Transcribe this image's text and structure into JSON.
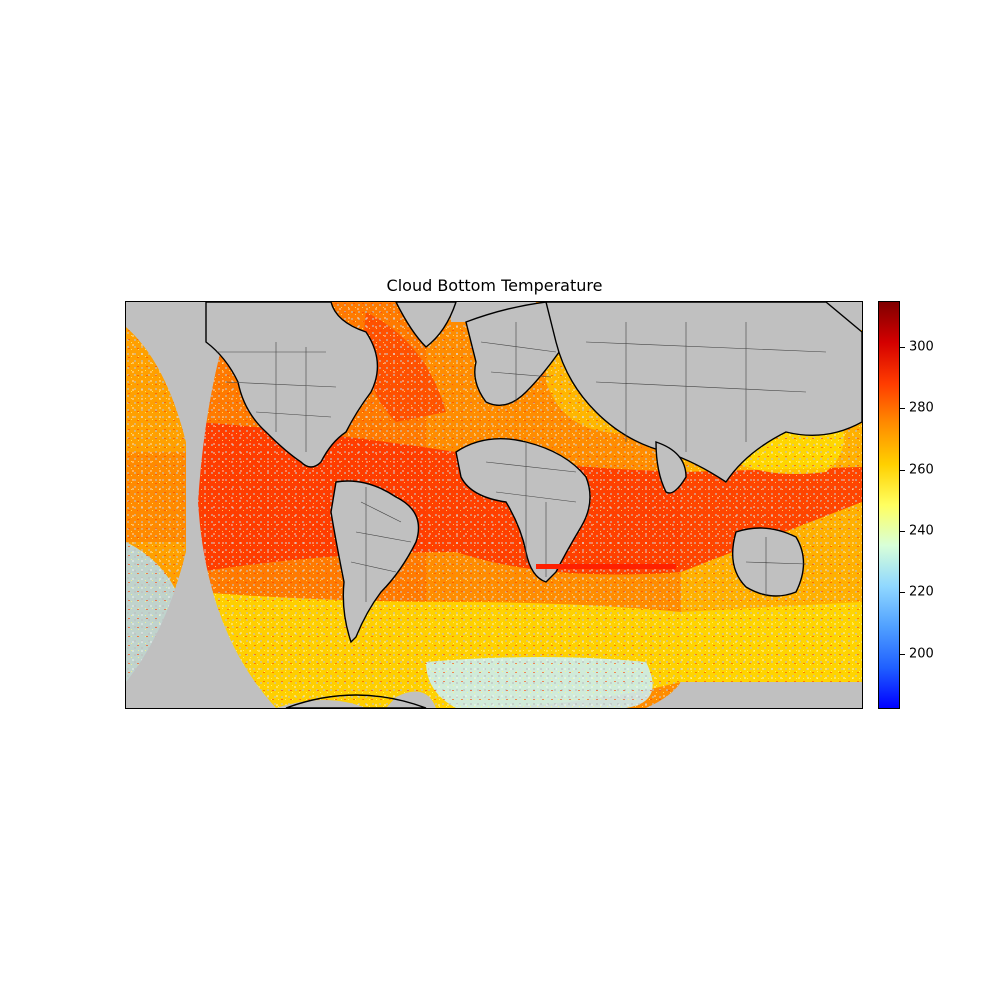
{
  "title": "Cloud Bottom Temperature",
  "colorbar": {
    "min": 182,
    "max": 315,
    "ticks": [
      200,
      220,
      240,
      260,
      280,
      300
    ],
    "tick_labels": [
      "200",
      "220",
      "240",
      "260",
      "280",
      "300"
    ],
    "colormap": [
      "#0000ff",
      "#2060ff",
      "#50a0ff",
      "#90d8ff",
      "#d8ffd8",
      "#ffff60",
      "#ffd000",
      "#ff8c00",
      "#ff3c00",
      "#d40000",
      "#800000"
    ]
  },
  "map": {
    "projection": "plate-carree",
    "no_data_color": "#c0c0c0",
    "coastline_color": "#000000",
    "border_color": "#444444",
    "dominant_colors": {
      "tropics_ocean": "#ff3c00",
      "midlatitudes": "#ffa500",
      "southern_ocean": "#ffe000",
      "high_southern": "#c8f0ff"
    }
  }
}
